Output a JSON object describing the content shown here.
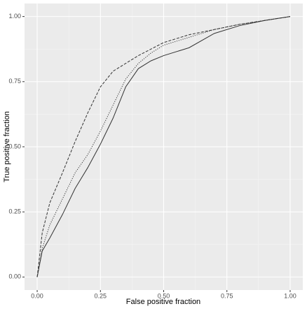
{
  "chart_data": {
    "type": "line",
    "xlabel": "False positive fraction",
    "ylabel": "True positive fraction",
    "x": [
      0,
      0.02,
      0.05,
      0.1,
      0.15,
      0.2,
      0.25,
      0.3,
      0.35,
      0.4,
      0.45,
      0.5,
      0.6,
      0.7,
      0.8,
      0.9,
      1
    ],
    "series": [
      {
        "color": "#333333",
        "dash": "solid",
        "values": [
          0,
          0.1,
          0.15,
          0.24,
          0.34,
          0.42,
          0.51,
          0.61,
          0.73,
          0.8,
          0.83,
          0.85,
          0.88,
          0.935,
          0.965,
          0.985,
          1
        ]
      },
      {
        "color": "#333333",
        "dash": "dashed",
        "values": [
          0,
          0.17,
          0.285,
          0.4,
          0.52,
          0.63,
          0.73,
          0.79,
          0.82,
          0.85,
          0.875,
          0.9,
          0.93,
          0.95,
          0.97,
          0.985,
          1
        ]
      },
      {
        "color": "#333333",
        "dash": "dotted",
        "values": [
          0,
          0.11,
          0.2,
          0.3,
          0.4,
          0.47,
          0.56,
          0.66,
          0.76,
          0.82,
          0.86,
          0.89,
          0.92,
          0.95,
          0.97,
          0.985,
          1
        ]
      }
    ],
    "xlim": [
      -0.05,
      1.05
    ],
    "ylim": [
      -0.05,
      1.05
    ],
    "xticks": [
      {
        "value": 0,
        "label": "0.00"
      },
      0.25,
      {
        "value": 0.5,
        "label": "0.50"
      },
      0.75,
      {
        "value": 1,
        "label": "1.00"
      }
    ],
    "yticks": [
      {
        "value": 0,
        "label": "0.00"
      },
      0.25,
      {
        "value": 0.5,
        "label": "0.50"
      },
      0.75,
      {
        "value": 1,
        "label": "1.00"
      }
    ],
    "grid": true,
    "background": "#ebebeb"
  }
}
